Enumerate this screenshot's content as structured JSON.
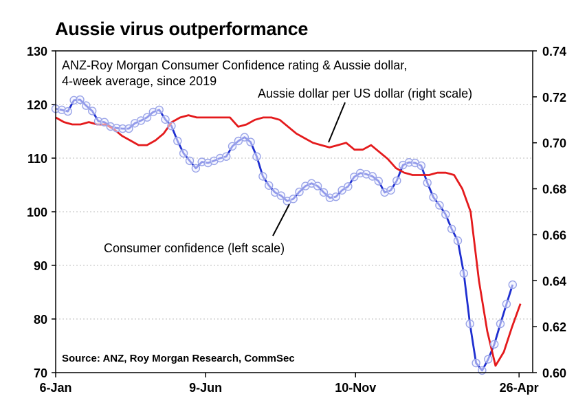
{
  "title": "Aussie virus outperformance",
  "chart_data": {
    "type": "line",
    "subtitle_lines": [
      "ANZ-Roy Morgan Consumer Confidence rating & Aussie dollar,",
      "4-week average, since 2019"
    ],
    "source": "Source: ANZ, Roy Morgan Research, CommSec",
    "x_ticks": [
      {
        "label": "6-Jan",
        "index": 0
      },
      {
        "label": "9-Jun",
        "index": 22
      },
      {
        "label": "10-Nov",
        "index": 44
      },
      {
        "label": "26-Apr",
        "index": 68
      }
    ],
    "x_range": [
      0,
      70
    ],
    "grid": true,
    "left_axis": {
      "min": 70,
      "max": 130,
      "ticks": [
        "70",
        "80",
        "90",
        "100",
        "110",
        "120",
        "130"
      ]
    },
    "right_axis": {
      "min": 0.6,
      "max": 0.74,
      "ticks": [
        "0.60",
        "0.62",
        "0.64",
        "0.66",
        "0.68",
        "0.70",
        "0.72",
        "0.74"
      ]
    },
    "series": [
      {
        "name": "Consumer confidence (left scale)",
        "axis": "left",
        "color": "#1f2fd0",
        "marker": "circle",
        "values": [
          119.2,
          119.0,
          118.7,
          120.8,
          120.9,
          119.8,
          118.8,
          116.9,
          116.7,
          115.9,
          115.6,
          115.5,
          115.5,
          116.5,
          117.0,
          117.6,
          118.6,
          119.0,
          117.2,
          116.0,
          113.2,
          110.9,
          109.5,
          108.1,
          109.3,
          109.1,
          109.5,
          110.0,
          110.3,
          112.2,
          113.2,
          113.9,
          113.0,
          110.3,
          106.6,
          104.9,
          103.6,
          103.0,
          102.0,
          102.4,
          103.7,
          104.8,
          105.3,
          104.8,
          103.6,
          102.6,
          102.8,
          104.0,
          104.7,
          106.5,
          107.2,
          107.0,
          106.6,
          105.7,
          103.6,
          104.0,
          105.8,
          108.7,
          109.2,
          109.1,
          108.6,
          105.4,
          102.7,
          101.2,
          99.5,
          96.8,
          94.6,
          88.5,
          79.1,
          71.8,
          70.4,
          72.5,
          75.3,
          79.1,
          82.8,
          86.4
        ],
        "x_step": 0.894
      },
      {
        "name": "Aussie dollar per US dollar (right scale)",
        "axis": "right",
        "color": "#e41a1c",
        "values": [
          0.711,
          0.709,
          0.708,
          0.708,
          0.709,
          0.708,
          0.708,
          0.706,
          0.703,
          0.701,
          0.699,
          0.699,
          0.701,
          0.704,
          0.709,
          0.711,
          0.712,
          0.711,
          0.711,
          0.711,
          0.711,
          0.711,
          0.707,
          0.708,
          0.71,
          0.711,
          0.711,
          0.71,
          0.707,
          0.704,
          0.702,
          0.7,
          0.699,
          0.698,
          0.699,
          0.7,
          0.697,
          0.697,
          0.699,
          0.696,
          0.693,
          0.689,
          0.687,
          0.686,
          0.686,
          0.686,
          0.687,
          0.687,
          0.686,
          0.68,
          0.67,
          0.64,
          0.618,
          0.603,
          0.609,
          0.62,
          0.63
        ],
        "x_end": 68.2
      }
    ],
    "annotations": [
      {
        "text": "Aussie dollar per US dollar (right scale)"
      },
      {
        "text": "Consumer confidence (left scale)"
      }
    ]
  }
}
